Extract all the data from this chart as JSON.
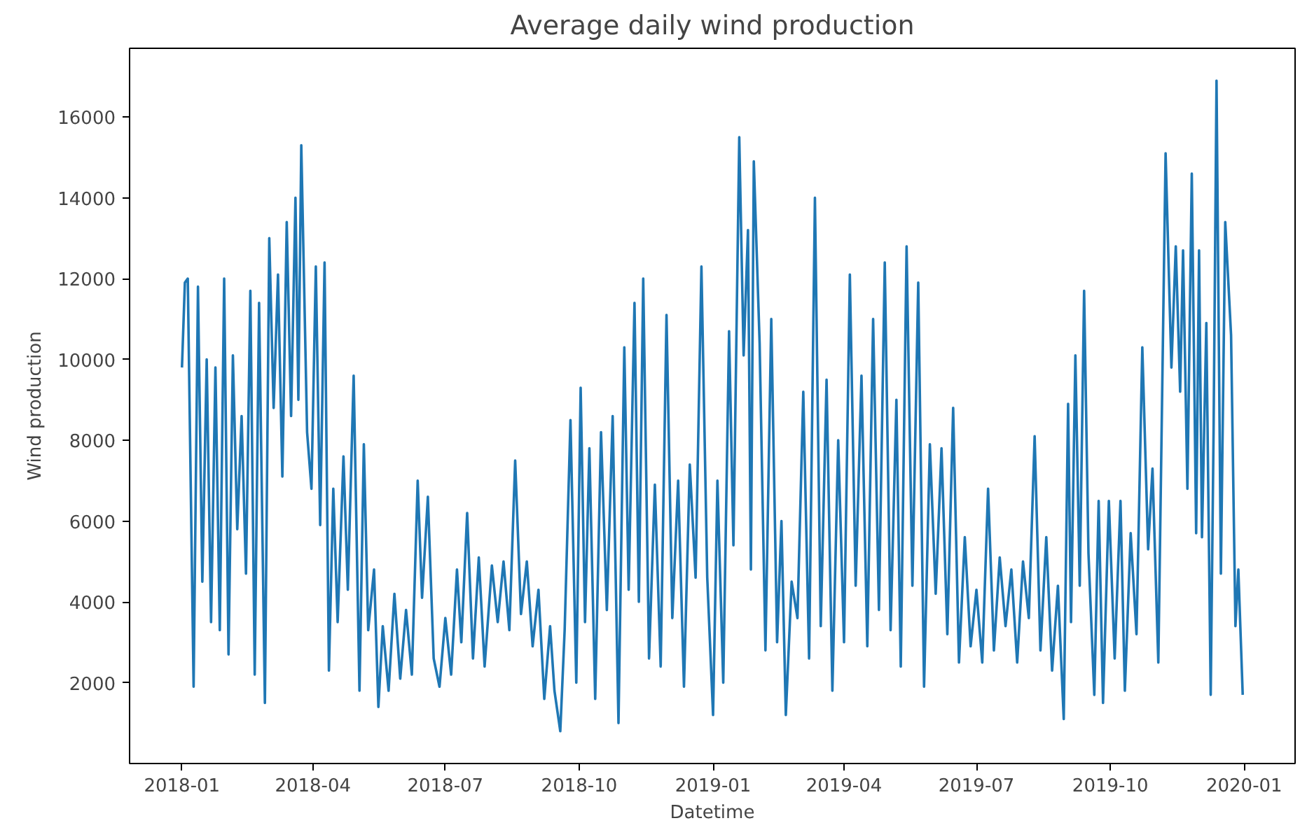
{
  "chart_data": {
    "type": "line",
    "title": "Average daily wind production",
    "xlabel": "Datetime",
    "ylabel": "Wind production",
    "x": [
      "2018-01-01",
      "2018-01-03",
      "2018-01-05",
      "2018-01-09",
      "2018-01-12",
      "2018-01-15",
      "2018-01-18",
      "2018-01-21",
      "2018-01-24",
      "2018-01-27",
      "2018-01-30",
      "2018-02-02",
      "2018-02-05",
      "2018-02-08",
      "2018-02-11",
      "2018-02-14",
      "2018-02-17",
      "2018-02-20",
      "2018-02-23",
      "2018-02-27",
      "2018-03-02",
      "2018-03-05",
      "2018-03-08",
      "2018-03-11",
      "2018-03-14",
      "2018-03-17",
      "2018-03-20",
      "2018-03-22",
      "2018-03-24",
      "2018-03-28",
      "2018-03-31",
      "2018-04-03",
      "2018-04-06",
      "2018-04-09",
      "2018-04-12",
      "2018-04-15",
      "2018-04-18",
      "2018-04-22",
      "2018-04-25",
      "2018-04-29",
      "2018-05-03",
      "2018-05-06",
      "2018-05-09",
      "2018-05-13",
      "2018-05-16",
      "2018-05-19",
      "2018-05-23",
      "2018-05-27",
      "2018-05-31",
      "2018-06-04",
      "2018-06-08",
      "2018-06-12",
      "2018-06-15",
      "2018-06-19",
      "2018-06-23",
      "2018-06-27",
      "2018-07-01",
      "2018-07-05",
      "2018-07-09",
      "2018-07-12",
      "2018-07-16",
      "2018-07-20",
      "2018-07-24",
      "2018-07-28",
      "2018-08-02",
      "2018-08-06",
      "2018-08-10",
      "2018-08-14",
      "2018-08-18",
      "2018-08-22",
      "2018-08-26",
      "2018-08-30",
      "2018-09-03",
      "2018-09-07",
      "2018-09-11",
      "2018-09-14",
      "2018-09-18",
      "2018-09-21",
      "2018-09-25",
      "2018-09-29",
      "2018-10-02",
      "2018-10-05",
      "2018-10-08",
      "2018-10-12",
      "2018-10-16",
      "2018-10-20",
      "2018-10-24",
      "2018-10-28",
      "2018-11-01",
      "2018-11-04",
      "2018-11-08",
      "2018-11-11",
      "2018-11-14",
      "2018-11-18",
      "2018-11-22",
      "2018-11-26",
      "2018-11-30",
      "2018-12-04",
      "2018-12-08",
      "2018-12-12",
      "2018-12-16",
      "2018-12-20",
      "2018-12-24",
      "2018-12-28",
      "2019-01-01",
      "2019-01-04",
      "2019-01-08",
      "2019-01-12",
      "2019-01-15",
      "2019-01-19",
      "2019-01-22",
      "2019-01-25",
      "2019-01-27",
      "2019-01-29",
      "2019-02-02",
      "2019-02-06",
      "2019-02-10",
      "2019-02-14",
      "2019-02-17",
      "2019-02-20",
      "2019-02-24",
      "2019-02-28",
      "2019-03-04",
      "2019-03-08",
      "2019-03-12",
      "2019-03-16",
      "2019-03-20",
      "2019-03-24",
      "2019-03-28",
      "2019-04-01",
      "2019-04-05",
      "2019-04-09",
      "2019-04-13",
      "2019-04-17",
      "2019-04-21",
      "2019-04-25",
      "2019-04-29",
      "2019-05-03",
      "2019-05-07",
      "2019-05-10",
      "2019-05-14",
      "2019-05-18",
      "2019-05-22",
      "2019-05-26",
      "2019-05-30",
      "2019-06-03",
      "2019-06-07",
      "2019-06-11",
      "2019-06-15",
      "2019-06-19",
      "2019-06-23",
      "2019-06-27",
      "2019-07-01",
      "2019-07-05",
      "2019-07-09",
      "2019-07-13",
      "2019-07-17",
      "2019-07-21",
      "2019-07-25",
      "2019-07-29",
      "2019-08-02",
      "2019-08-06",
      "2019-08-10",
      "2019-08-14",
      "2019-08-18",
      "2019-08-22",
      "2019-08-26",
      "2019-08-30",
      "2019-09-02",
      "2019-09-04",
      "2019-09-07",
      "2019-09-10",
      "2019-09-13",
      "2019-09-16",
      "2019-09-20",
      "2019-09-23",
      "2019-09-26",
      "2019-09-30",
      "2019-10-04",
      "2019-10-08",
      "2019-10-11",
      "2019-10-15",
      "2019-10-19",
      "2019-10-23",
      "2019-10-27",
      "2019-10-30",
      "2019-11-03",
      "2019-11-08",
      "2019-11-12",
      "2019-11-15",
      "2019-11-18",
      "2019-11-20",
      "2019-11-23",
      "2019-11-26",
      "2019-11-29",
      "2019-12-01",
      "2019-12-03",
      "2019-12-06",
      "2019-12-09",
      "2019-12-11",
      "2019-12-13",
      "2019-12-16",
      "2019-12-19",
      "2019-12-23",
      "2019-12-26",
      "2019-12-28",
      "2019-12-31"
    ],
    "series": [
      {
        "color": "#1f77b4",
        "values": [
          9800,
          11900,
          12000,
          1900,
          11800,
          4500,
          10000,
          3500,
          9800,
          3300,
          12000,
          2700,
          10100,
          5800,
          8600,
          4700,
          11700,
          2200,
          11400,
          1500,
          13000,
          8800,
          12100,
          7100,
          13400,
          8600,
          14000,
          9000,
          15300,
          8200,
          6800,
          12300,
          5900,
          12400,
          2300,
          6800,
          3500,
          7600,
          4300,
          9600,
          1800,
          7900,
          3300,
          4800,
          1400,
          3400,
          1800,
          4200,
          2100,
          3800,
          2200,
          7000,
          4100,
          6600,
          2600,
          1900,
          3600,
          2200,
          4800,
          3000,
          6200,
          2600,
          5100,
          2400,
          4900,
          3500,
          5000,
          3300,
          7500,
          3700,
          5000,
          2900,
          4300,
          1600,
          3400,
          1800,
          800,
          3300,
          8500,
          2000,
          9300,
          3500,
          7800,
          1600,
          8200,
          3800,
          8600,
          1000,
          10300,
          4300,
          11400,
          4000,
          12000,
          2600,
          6900,
          2400,
          11100,
          3600,
          7000,
          1900,
          7400,
          4600,
          12300,
          4600,
          1200,
          7000,
          2000,
          10700,
          5400,
          15500,
          10100,
          13200,
          4800,
          14900,
          10400,
          2800,
          11000,
          3000,
          6000,
          1200,
          4500,
          3600,
          9200,
          2600,
          14000,
          3400,
          9500,
          1800,
          8000,
          3000,
          12100,
          4400,
          9600,
          2900,
          11000,
          3800,
          12400,
          3300,
          9000,
          2400,
          12800,
          4400,
          11900,
          1900,
          7900,
          4200,
          7800,
          3200,
          8800,
          2500,
          5600,
          2900,
          4300,
          2500,
          6800,
          2800,
          5100,
          3400,
          4800,
          2500,
          5000,
          3600,
          8100,
          2800,
          5600,
          2300,
          4400,
          1100,
          8900,
          3500,
          10100,
          4400,
          11700,
          5200,
          1700,
          6500,
          1500,
          6500,
          2600,
          6500,
          1800,
          5700,
          3200,
          10300,
          5300,
          7300,
          2500,
          15100,
          9800,
          12800,
          9200,
          12700,
          6800,
          14600,
          5700,
          12700,
          5600,
          10900,
          1700,
          8300,
          16900,
          4700,
          13400,
          10600,
          3400,
          4800,
          1700
        ]
      }
    ],
    "xlim": [
      "2017-11-26",
      "2020-02-05"
    ],
    "xticks": [
      {
        "value": "2018-01-01",
        "label": "2018-01"
      },
      {
        "value": "2018-04-01",
        "label": "2018-04"
      },
      {
        "value": "2018-07-01",
        "label": "2018-07"
      },
      {
        "value": "2018-10-01",
        "label": "2018-10"
      },
      {
        "value": "2019-01-01",
        "label": "2019-01"
      },
      {
        "value": "2019-04-01",
        "label": "2019-04"
      },
      {
        "value": "2019-07-01",
        "label": "2019-07"
      },
      {
        "value": "2019-10-01",
        "label": "2019-10"
      },
      {
        "value": "2020-01-01",
        "label": "2020-01"
      }
    ],
    "ylim": [
      0,
      17700
    ],
    "yticks": [
      2000,
      4000,
      6000,
      8000,
      10000,
      12000,
      14000,
      16000
    ],
    "grid": false
  }
}
